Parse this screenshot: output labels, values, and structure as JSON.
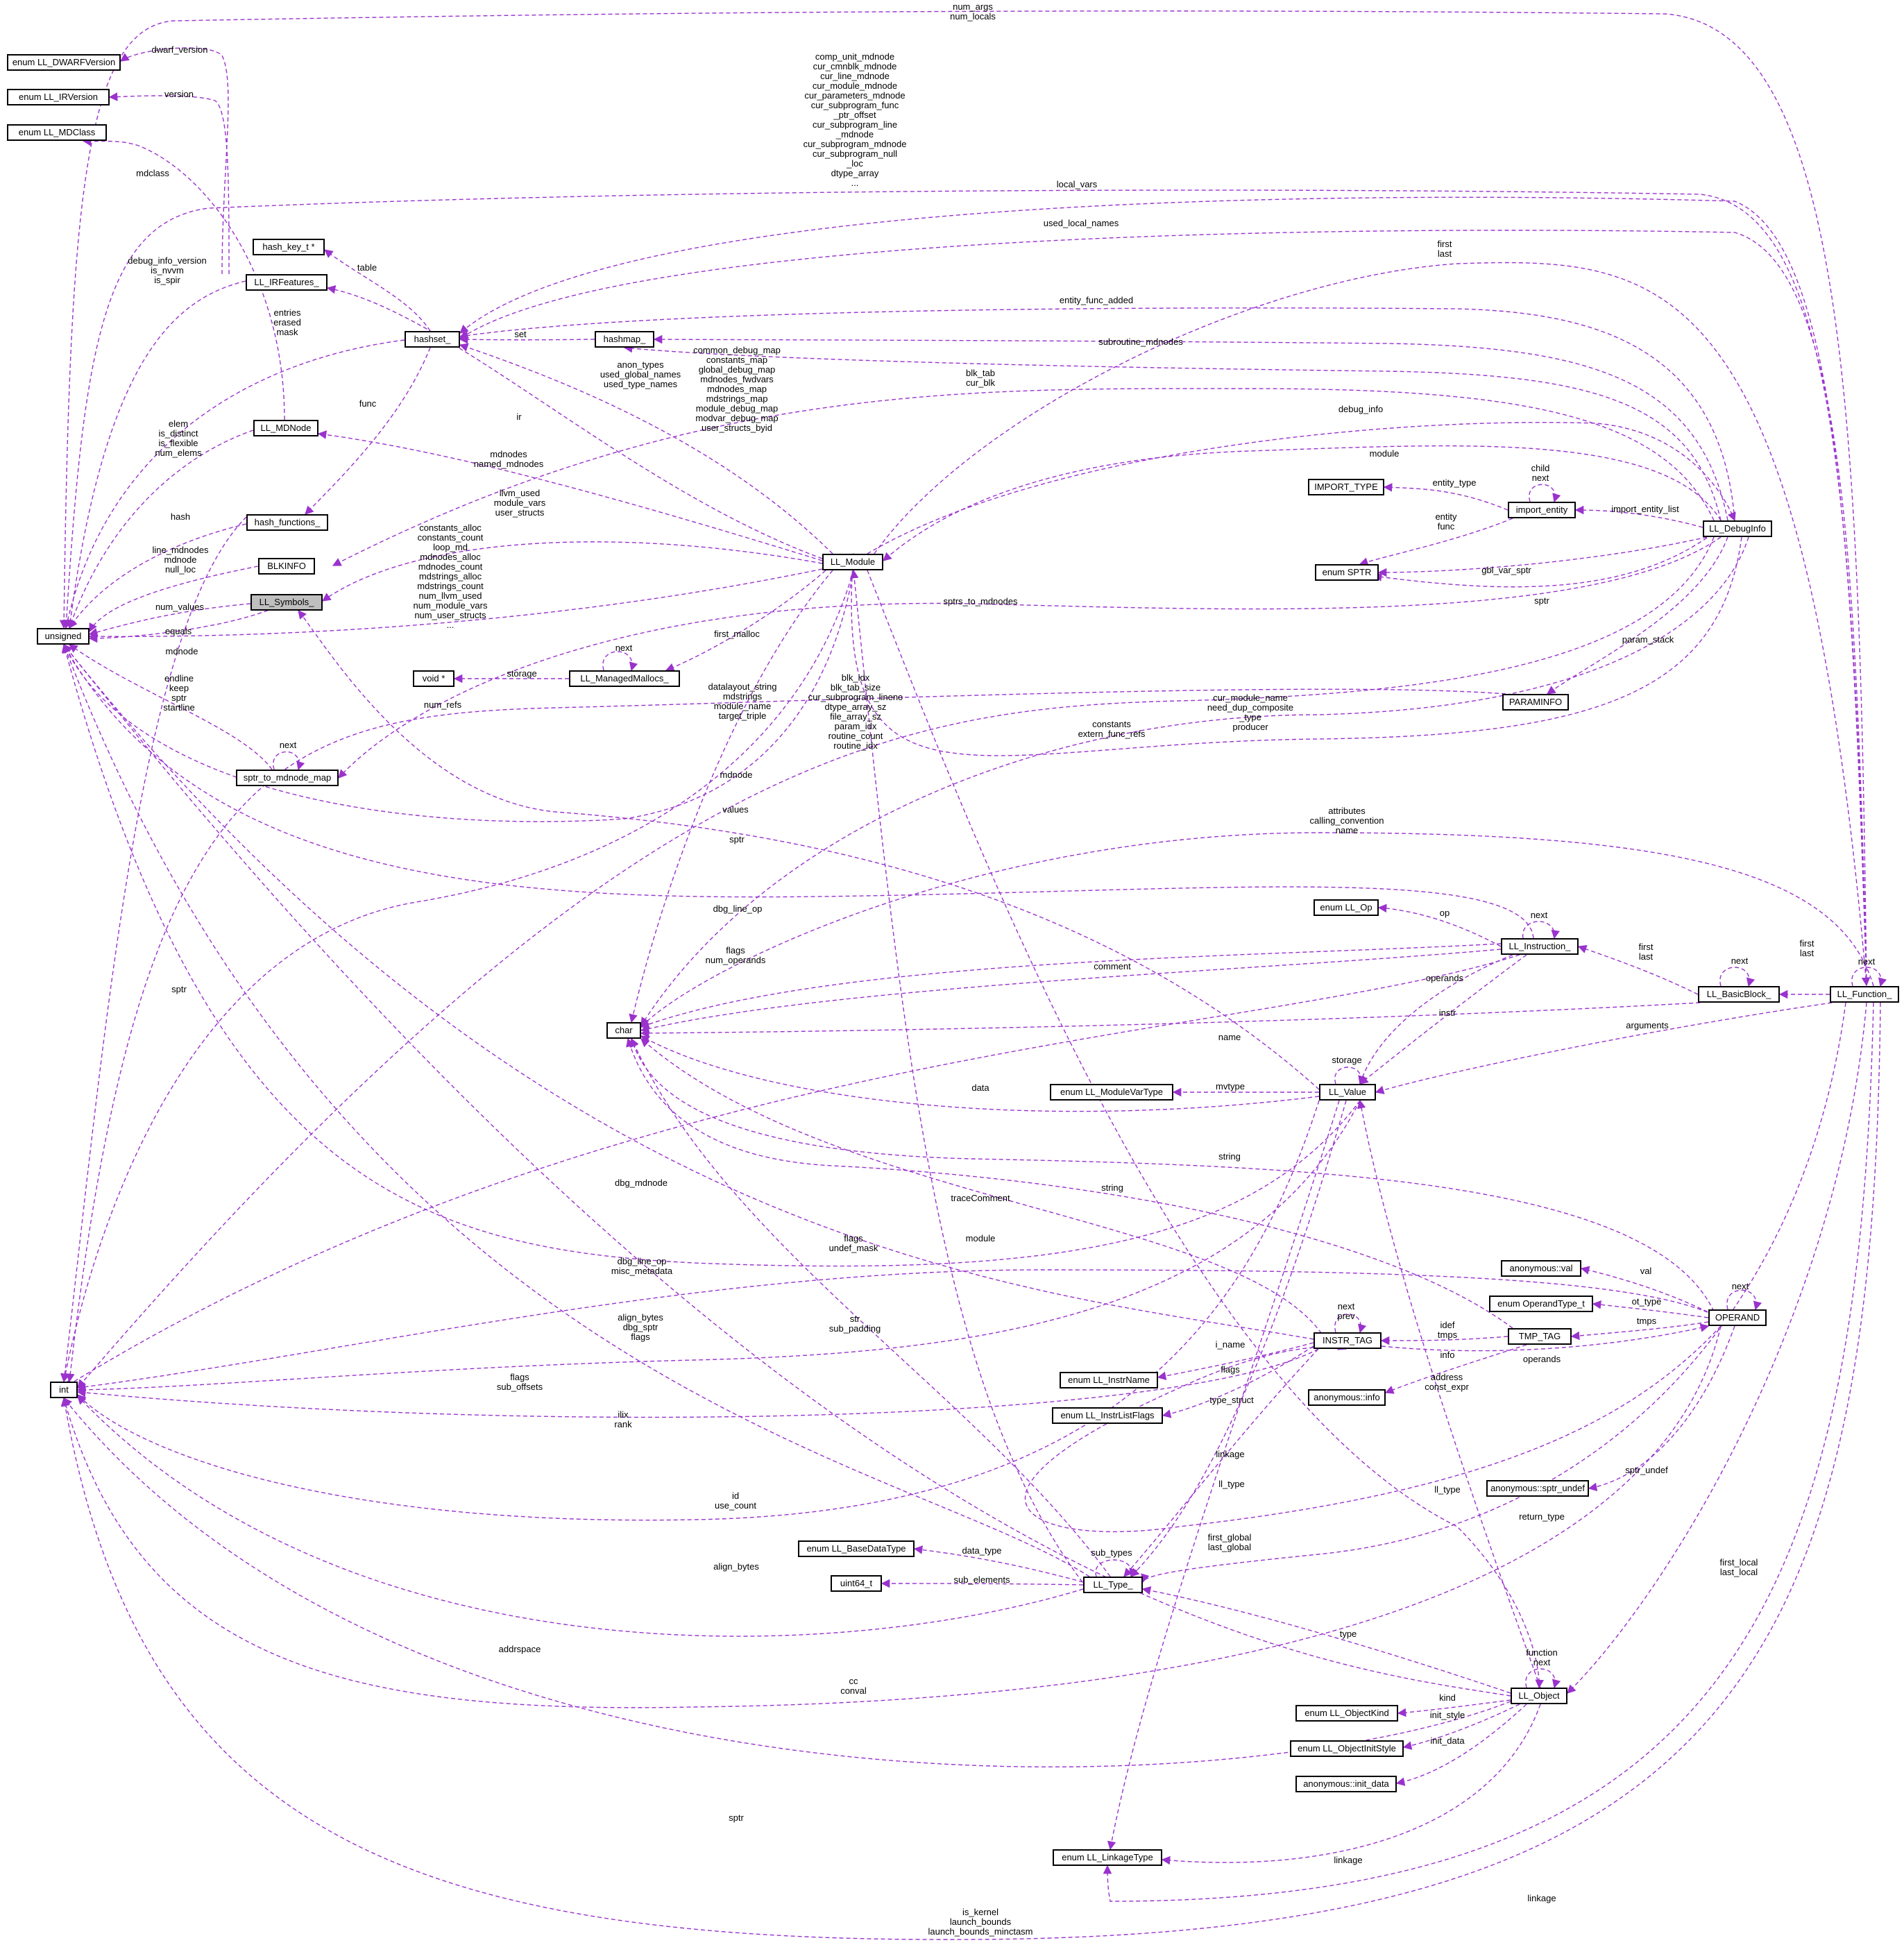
{
  "diagram": {
    "nodes": {
      "enum_dwarf": "enum LL_DWARFVersion",
      "enum_irversion": "enum LL_IRVersion",
      "enum_mdclass": "enum LL_MDClass",
      "hash_key": "hash_key_t *",
      "irfeatures": "LL_IRFeatures_",
      "hashset": "hashset_",
      "hashmap": "hashmap_",
      "mdnode": "LL_MDNode",
      "hash_functions": "hash_functions_",
      "blkinfo": "BLKINFO",
      "symbols": "LL_Symbols_",
      "unsigned": "unsigned",
      "void_ptr": "void *",
      "managed_mallocs": "LL_ManagedMallocs_",
      "sptr_map": "sptr_to_mdnode_map",
      "module": "LL_Module",
      "import_type": "IMPORT_TYPE",
      "import_entity": "import_entity",
      "enum_sptr": "enum SPTR",
      "debuginfo": "LL_DebugInfo",
      "paraminfo": "PARAMINFO",
      "enum_op": "enum LL_Op",
      "instruction": "LL_Instruction_",
      "basicblock": "LL_BasicBlock_",
      "function": "LL_Function_",
      "char": "char",
      "enum_modulevartype": "enum LL_ModuleVarType",
      "value": "LL_Value",
      "anon_val": "anonymous::val",
      "enum_operandtype": "enum OperandType_t",
      "operand": "OPERAND",
      "instr_tag": "INSTR_TAG",
      "tmp_tag": "TMP_TAG",
      "enum_instrname": "enum LL_InstrName",
      "enum_instrlistflags": "enum LL_InstrListFlags",
      "anon_info": "anonymous::info",
      "int": "int",
      "anon_sptr_undef": "anonymous::sptr_undef",
      "enum_basedatatype": "enum LL_BaseDataType",
      "uint64": "uint64_t",
      "type": "LL_Type_",
      "object": "LL_Object",
      "enum_objectkind": "enum LL_ObjectKind",
      "enum_objectinitstyle": "enum LL_ObjectInitStyle",
      "anon_init_data": "anonymous::init_data",
      "enum_linkagetype": "enum LL_LinkageType"
    },
    "edge_labels": {
      "num_args": "num_args\nnum_locals",
      "dwarf_version": "dwarf_version",
      "version": "version",
      "mdclass": "mdclass",
      "comp_unit": "comp_unit_mdnode\ncur_cmnblk_mdnode\ncur_line_mdnode\ncur_module_mdnode\ncur_parameters_mdnode\ncur_subprogram_func\n_ptr_offset\ncur_subprogram_line\n_mdnode\ncur_subprogram_mdnode\ncur_subprogram_null\n_loc\ndtype_array\n...",
      "local_vars": "local_vars",
      "used_local_names": "used_local_names",
      "first_last_top": "first\nlast",
      "table": "table",
      "debug_info_version": "debug_info_version\nis_nvvm\nis_spir",
      "entity_func_added": "entity_func_added",
      "entries": "entries\nerased\nmask",
      "set": "set",
      "subroutine_mdnodes": "subroutine_mdnodes",
      "common_debug_map": "common_debug_map\nconstants_map\nglobal_debug_map\nmdnodes_fwdvars\nmdnodes_map\nmdstrings_map\nmodule_debug_map\nmodvar_debug_map\nuser_structs_byid",
      "anon_types": "anon_types\nused_global_names\nused_type_names",
      "blk_tab": "blk_tab\ncur_blk",
      "debug_info": "debug_info",
      "func": "func",
      "ir": "ir",
      "elem": "elem\nis_distinct\nis_flexible\nnum_elems",
      "mdnodes": "mdnodes\nnamed_mdnodes",
      "module_edge": "module",
      "child_next": "child\nnext",
      "entity_type": "entity_type",
      "hash": "hash",
      "llvm_used": "llvm_used\nmodule_vars\nuser_structs",
      "entity_func": "entity\nfunc",
      "import_entity_list": "import_entity_list",
      "line_mdnodes": "line_mdnodes\nmdnode\nnull_loc",
      "constants_alloc": "constants_alloc\nconstants_count\nloop_md\nmdnodes_alloc\nmdnodes_count\nmdstrings_alloc\nmdstrings_count\nnum_llvm_used\nnum_module_vars\nnum_user_structs\n...",
      "gbl_var_sptr": "gbl_var_sptr",
      "num_values": "num_values",
      "sptrs_to_mdnodes": "sptrs_to_mdnodes",
      "sptr_debuginfo": "sptr",
      "equals": "equals",
      "next_mm": "next",
      "first_malloc": "first_malloc",
      "param_stack": "param_stack",
      "storage_void": "storage",
      "mdnode_left": "mdnode",
      "datalayout": "datalayout_string\nmdstrings\nmodule_name\ntarget_triple",
      "next_sptr": "next",
      "num_refs": "num_refs",
      "cur_module_name": "cur_module_name\nneed_dup_composite\n_type\nproducer",
      "blk_idx": "blk_idx\nblk_tab_size\ncur_subprogram_lineno\ndtype_array_sz\nfile_array_sz\nparam_idx\nroutine_count\nroutine_idx",
      "constants_extern": "constants\nextern_func_refs",
      "endline": "endline\nkeep\nsptr\nstartline",
      "mdnode_mid": "mdnode",
      "values": "values",
      "sptr_mid": "sptr",
      "attributes": "attributes\ncalling_convention\nname",
      "next_instr": "next",
      "op": "op",
      "dbg_line_op": "dbg_line_op",
      "first_last_instr": "first\nlast",
      "next_bb": "next",
      "flags_num_operands": "flags\nnum_operands",
      "comment": "comment",
      "operands_instr": "operands",
      "first_last_bb": "first\nlast",
      "next_func": "next",
      "sptr_left": "sptr",
      "name": "name",
      "instr": "instr",
      "arguments": "arguments",
      "storage_value": "storage",
      "data": "data",
      "mvtype": "mvtype",
      "string_operand": "string",
      "dbg_mdnode": "dbg_mdnode",
      "string_tmp": "string",
      "tracecomment": "traceComment",
      "flags_undef": "flags\nundef_mask",
      "module_mid": "module",
      "val": "val",
      "next_operand": "next",
      "dbg_line_op2": "dbg_line_op\nmisc_metadata",
      "ot_type": "ot_type",
      "next_prev": "next\nprev",
      "align_bytes_dbg": "align_bytes\ndbg_sptr\nflags",
      "str_sub_padding": "str\nsub_padding",
      "idef_tmps": "idef\ntmps",
      "tmps": "tmps",
      "i_name": "i_name",
      "info": "info",
      "operands_tmp": "operands",
      "flags_instr": "flags",
      "flags_sub_offsets": "flags\nsub_offsets",
      "address_const": "address\nconst_expr",
      "ilix_rank": "ilix\nrank",
      "type_struct": "type_struct",
      "linkage_mid": "linkage",
      "ll_type_left": "ll_type",
      "sptr_undef": "sptr_undef",
      "ll_type_right": "ll_type",
      "id_use_count": "id\nuse_count",
      "return_type": "return_type",
      "first_global": "first_global\nlast_global",
      "sub_types": "sub_types",
      "align_bytes": "align_bytes",
      "data_type": "data_type",
      "sub_elements": "sub_elements",
      "first_local": "first_local\nlast_local",
      "type_obj": "type",
      "addrspace": "addrspace",
      "function_next": "function\nnext",
      "cc_conval": "cc\nconval",
      "kind": "kind",
      "init_style": "init_style",
      "init_data": "init_data",
      "sptr_bottom": "sptr",
      "linkage_obj": "linkage",
      "linkage_func": "linkage",
      "is_kernel": "is_kernel\nlaunch_bounds\nlaunch_bounds_minctasm"
    }
  },
  "colors": {
    "edge": "#9a32cd",
    "node_border": "#000000",
    "highlight": "#bfbfbf",
    "background": "#ffffff"
  }
}
